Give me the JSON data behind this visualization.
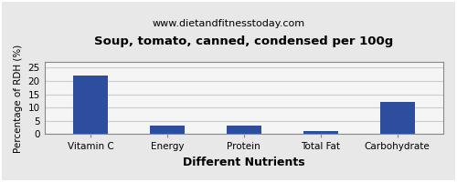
{
  "title": "Soup, tomato, canned, condensed per 100g",
  "subtitle": "www.dietandfitnesstoday.com",
  "categories": [
    "Vitamin C",
    "Energy",
    "Protein",
    "Total Fat",
    "Carbohydrate"
  ],
  "values": [
    22,
    3.2,
    3.2,
    1.1,
    12
  ],
  "bar_color": "#2d4e9e",
  "xlabel": "Different Nutrients",
  "ylabel": "Percentage of RDH (%)",
  "ylim": [
    0,
    27
  ],
  "yticks": [
    0,
    5,
    10,
    15,
    20,
    25
  ],
  "title_fontsize": 9.5,
  "subtitle_fontsize": 8,
  "xlabel_fontsize": 9,
  "ylabel_fontsize": 7.5,
  "tick_fontsize": 7.5,
  "background_color": "#e8e8e8",
  "plot_bg_color": "#f5f5f5",
  "grid_color": "#cccccc",
  "border_color": "#888888"
}
